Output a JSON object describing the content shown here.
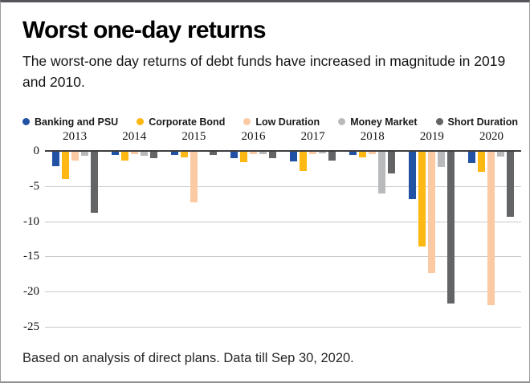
{
  "card": {
    "title": "Worst one-day returns",
    "subtitle": "The worst-one day returns of debt funds have increased in magnitude in 2019 and 2010.",
    "footer": "Based on analysis of direct plans. Data till Sep 30, 2020."
  },
  "colors": {
    "zero_line": "#3e3e40",
    "gridline": "#c9c9c9",
    "banking_and_psu": "#2152a3",
    "corporate_bond": "#fdb813",
    "low_duration": "#fbc9a2",
    "money_market": "#b9babc",
    "short_duration": "#636466"
  },
  "chart_data": {
    "type": "bar",
    "title": "Worst one-day returns",
    "xlabel": "",
    "ylabel": "",
    "categories": [
      "2013",
      "2014",
      "2015",
      "2016",
      "2017",
      "2018",
      "2019",
      "2020"
    ],
    "series": [
      {
        "name": "Banking and PSU",
        "color": "#2152a3",
        "values": [
          -2.2,
          -0.6,
          -0.6,
          -1.0,
          -1.5,
          -0.6,
          -6.9,
          -1.7
        ]
      },
      {
        "name": "Corporate Bond",
        "color": "#fdb813",
        "values": [
          -4.0,
          -1.4,
          -0.9,
          -1.6,
          -2.8,
          -0.9,
          -13.6,
          -3.0
        ]
      },
      {
        "name": "Low Duration",
        "color": "#fbc9a2",
        "values": [
          -1.4,
          -0.4,
          -7.3,
          -0.4,
          -0.5,
          -0.5,
          -17.3,
          -21.9
        ]
      },
      {
        "name": "Money Market",
        "color": "#b9babc",
        "values": [
          -0.7,
          -0.7,
          -0.1,
          -0.5,
          -0.3,
          -6.1,
          -2.3,
          -0.8
        ]
      },
      {
        "name": "Short Duration",
        "color": "#636466",
        "values": [
          -8.8,
          -1.0,
          -0.6,
          -1.0,
          -1.4,
          -3.2,
          -21.7,
          -9.4
        ]
      }
    ],
    "ylim": [
      -25,
      0
    ],
    "yticks": [
      0,
      -5,
      -10,
      -15,
      -20,
      -25
    ],
    "grid": true,
    "legend_position": "top"
  }
}
